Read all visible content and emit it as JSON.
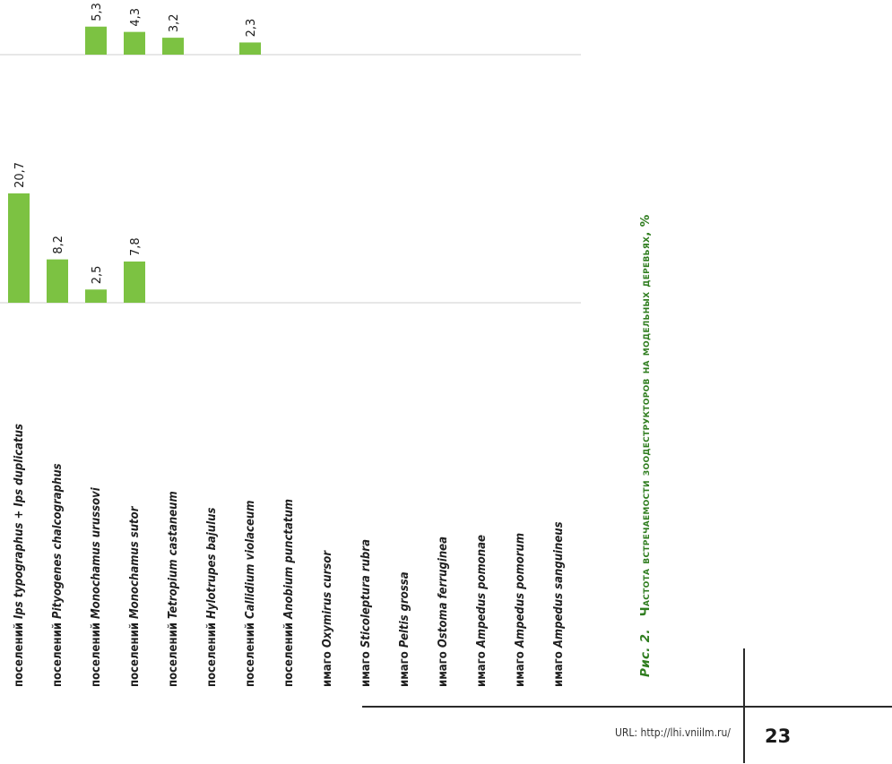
{
  "chart_data": {
    "type": "bar",
    "orientation": "rotated",
    "title": "Рис. 2. Частота встречаемости зоодеструкторов на модельных деревьях, %",
    "value_unit": "%",
    "categories": [
      {
        "prefix": "поселений",
        "species": "Ips typographus + Ips duplicatus"
      },
      {
        "prefix": "поселений",
        "species": "Pityogenes chalcographus"
      },
      {
        "prefix": "поселений",
        "species": "Monochamus urussovi"
      },
      {
        "prefix": "поселений",
        "species": "Monochamus sutor"
      },
      {
        "prefix": "поселений",
        "species": "Tetropium castaneum"
      },
      {
        "prefix": "поселений",
        "species": "Hylotrupes bajulus"
      },
      {
        "prefix": "поселений",
        "species": "Callidium violaceum"
      },
      {
        "prefix": "поселений",
        "species": "Anobium punctatum"
      },
      {
        "prefix": "имаго",
        "species": "Oxymirus cursor"
      },
      {
        "prefix": "имаго",
        "species": "Sticoleptura rubra"
      },
      {
        "prefix": "имаго",
        "species": "Peltis grossa"
      },
      {
        "prefix": "имаго",
        "species": "Ostoma ferruginea"
      },
      {
        "prefix": "имаго",
        "species": "Ampedus pomonae"
      },
      {
        "prefix": "имаго",
        "species": "Ampedus pomorum"
      },
      {
        "prefix": "имаго",
        "species": "Ampedus sanguineus"
      }
    ],
    "panels": [
      {
        "id": "left",
        "values": [
          20.7,
          8.2,
          2.5,
          7.8,
          null,
          null,
          null,
          null,
          null,
          null,
          null,
          null,
          null,
          null,
          null
        ],
        "labels": [
          "20,7",
          "8,2",
          "2,5",
          "7,8",
          "",
          "",
          "",
          "",
          "",
          "",
          "",
          "",
          "",
          "",
          ""
        ]
      },
      {
        "id": "right",
        "values": [
          null,
          null,
          5.3,
          4.3,
          3.2,
          null,
          2.3,
          null,
          null,
          null,
          null,
          null,
          null,
          null,
          null
        ],
        "labels": [
          "",
          "",
          "5,3",
          "4,3",
          "3,2",
          "",
          "2,3",
          "",
          "",
          "",
          "",
          "",
          "",
          "",
          ""
        ]
      }
    ],
    "bar_color": "#7cc242"
  },
  "caption": {
    "fig": "Рис. 2.",
    "title": "Частота встречаемости зоодеструкторов на модельных деревьях, %"
  },
  "footer": {
    "url": "URL: http://lhi.vniilm.ru/",
    "page": "23"
  }
}
